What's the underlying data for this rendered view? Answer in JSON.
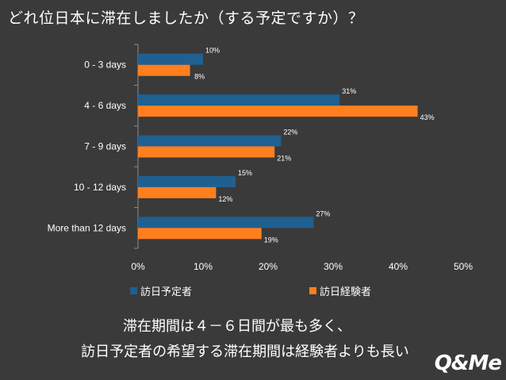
{
  "title": "どれ位日本に滞在しましたか（する予定ですか）？",
  "chart_data": {
    "type": "bar",
    "orientation": "horizontal",
    "categories": [
      "0 - 3 days",
      "4 - 6 days",
      "7 - 9 days",
      "10 - 12 days",
      "More than 12 days"
    ],
    "series": [
      {
        "name": "訪日予定者",
        "color": "#1f6091",
        "values": [
          10,
          31,
          22,
          15,
          27
        ],
        "labels": [
          "10%",
          "31%",
          "22%",
          "15%",
          "27%"
        ]
      },
      {
        "name": "訪日経験者",
        "color": "#ff7f1e",
        "values": [
          8,
          43,
          21,
          12,
          19
        ],
        "labels": [
          "8%",
          "43%",
          "21%",
          "12%",
          "19%"
        ]
      }
    ],
    "xlim": [
      0,
      50
    ],
    "xticks": [
      "0%",
      "10%",
      "20%",
      "30%",
      "40%",
      "50%"
    ],
    "legend_position": "bottom",
    "grid": false
  },
  "summary": {
    "line1": "滞在期間は４－６日間が最も多く、",
    "line2": "訪日予定者の希望する滞在期間は経験者よりも長い"
  },
  "logo": "Q&Me"
}
